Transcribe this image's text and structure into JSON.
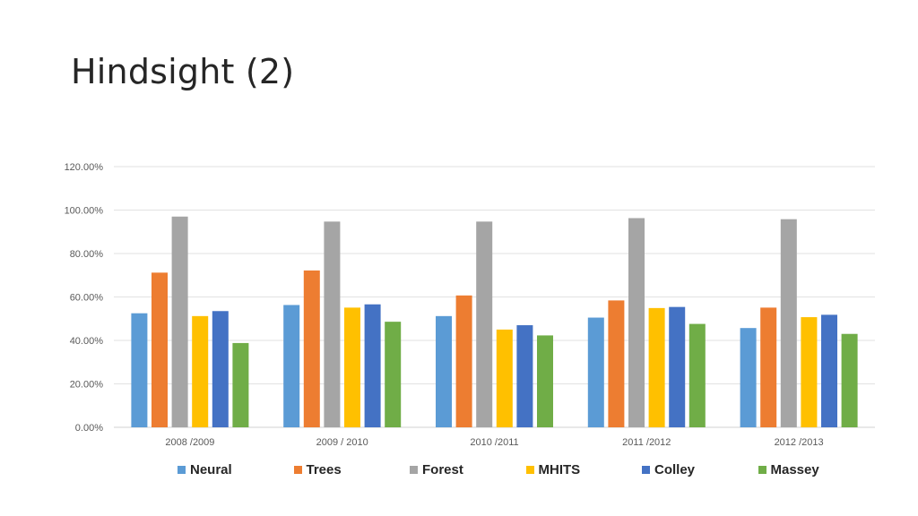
{
  "slide": {
    "title": "Hindsight (2)"
  },
  "chart_data": {
    "type": "bar",
    "title": "",
    "xlabel": "",
    "ylabel": "",
    "ylim": [
      0,
      1.2
    ],
    "y_ticks": [
      0,
      0.2,
      0.4,
      0.6,
      0.8,
      1.0,
      1.2
    ],
    "y_tick_labels": [
      "0.00%",
      "20.00%",
      "40.00%",
      "60.00%",
      "80.00%",
      "100.00%",
      "120.00%"
    ],
    "grid": true,
    "legend_position": "bottom",
    "categories": [
      "2008 /2009",
      "2009 / 2010",
      "2010 /2011",
      "2011 /2012",
      "2012 /2013"
    ],
    "series": [
      {
        "name": "Neural",
        "color": "#5B9BD5",
        "values": [
          0.525,
          0.563,
          0.512,
          0.505,
          0.457
        ]
      },
      {
        "name": "Trees",
        "color": "#ED7D31",
        "values": [
          0.712,
          0.722,
          0.607,
          0.584,
          0.551
        ]
      },
      {
        "name": "Forest",
        "color": "#A5A5A5",
        "values": [
          0.97,
          0.947,
          0.947,
          0.963,
          0.958
        ]
      },
      {
        "name": "MHITS",
        "color": "#FFC000",
        "values": [
          0.512,
          0.551,
          0.45,
          0.549,
          0.507
        ]
      },
      {
        "name": "Colley",
        "color": "#4472C4",
        "values": [
          0.535,
          0.566,
          0.47,
          0.554,
          0.518
        ]
      },
      {
        "name": "Massey",
        "color": "#70AD47",
        "values": [
          0.388,
          0.486,
          0.423,
          0.476,
          0.43
        ]
      }
    ]
  }
}
